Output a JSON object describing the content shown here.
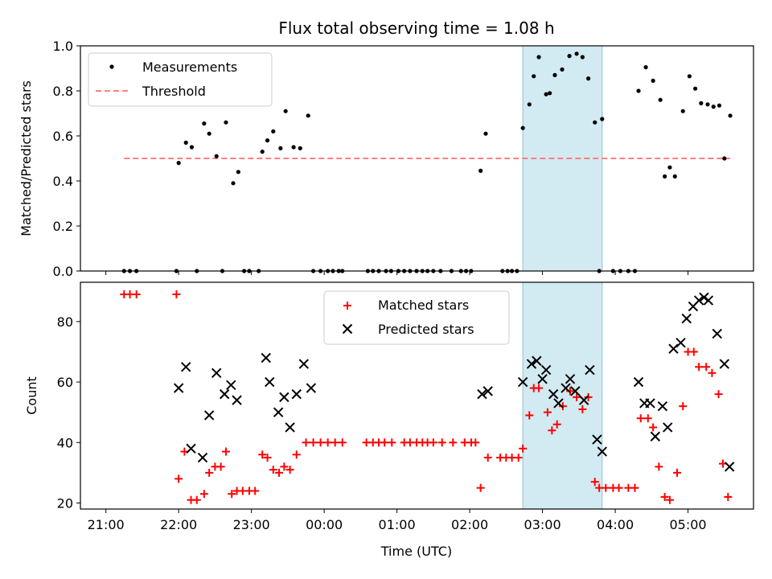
{
  "chart_data": [
    {
      "type": "scatter",
      "title": "Flux total observing time = 1.08 h",
      "ylabel": "Matched/Predicted stars",
      "xlabel": "",
      "xlim_hours": [
        20.65,
        29.9
      ],
      "ylim": [
        0,
        1.0
      ],
      "yticks": [
        0.0,
        0.2,
        0.4,
        0.6,
        0.8,
        1.0
      ],
      "ytick_labels": [
        "0.0",
        "0.2",
        "0.4",
        "0.6",
        "0.8",
        "1.0"
      ],
      "shaded_region_hours": [
        26.73,
        27.82
      ],
      "shaded_color": "#add8e6",
      "legend_position": "upper left",
      "series": [
        {
          "name": "Measurements",
          "marker": "dot",
          "color": "#000000",
          "x": [
            21.25,
            21.33,
            21.42,
            21.97,
            22.0,
            22.1,
            22.18,
            22.25,
            22.35,
            22.42,
            22.52,
            22.6,
            22.65,
            22.75,
            22.82,
            22.9,
            22.97,
            23.1,
            23.15,
            23.22,
            23.3,
            23.4,
            23.47,
            23.58,
            23.67,
            23.78,
            23.85,
            23.95,
            24.05,
            24.12,
            24.2,
            24.25,
            24.6,
            24.67,
            24.75,
            24.85,
            24.92,
            25.02,
            25.1,
            25.18,
            25.27,
            25.35,
            25.42,
            25.5,
            25.6,
            25.75,
            25.88,
            25.95,
            26.02,
            26.15,
            26.22,
            26.45,
            26.52,
            26.58,
            26.65,
            26.73,
            26.82,
            26.88,
            26.95,
            27.05,
            27.1,
            27.17,
            27.27,
            27.37,
            27.47,
            27.55,
            27.63,
            27.72,
            27.78,
            27.82,
            27.97,
            28.07,
            28.18,
            28.27,
            28.32,
            28.42,
            28.52,
            28.62,
            28.68,
            28.75,
            28.82,
            28.93,
            29.02,
            29.1,
            29.18,
            29.27,
            29.35,
            29.43,
            29.5,
            29.58
          ],
          "y": [
            0.0,
            0.0,
            0.0,
            0.0,
            0.48,
            0.57,
            0.55,
            0.0,
            0.655,
            0.61,
            0.51,
            0.0,
            0.66,
            0.39,
            0.44,
            0.0,
            0.0,
            0.0,
            0.53,
            0.58,
            0.62,
            0.545,
            0.71,
            0.55,
            0.545,
            0.69,
            0.0,
            0.0,
            0.0,
            0.0,
            0.0,
            0.0,
            0.0,
            0.0,
            0.0,
            0.0,
            0.0,
            0.0,
            0.0,
            0.0,
            0.0,
            0.0,
            0.0,
            0.0,
            0.0,
            0.0,
            0.0,
            0.0,
            0.0,
            0.445,
            0.61,
            0.0,
            0.0,
            0.0,
            0.0,
            0.635,
            0.74,
            0.865,
            0.95,
            0.785,
            0.79,
            0.87,
            0.895,
            0.955,
            0.965,
            0.95,
            0.855,
            0.66,
            0.0,
            0.675,
            0.0,
            0.0,
            0.0,
            0.0,
            0.8,
            0.905,
            0.845,
            0.76,
            0.42,
            0.46,
            0.42,
            0.71,
            0.865,
            0.81,
            0.745,
            0.74,
            0.73,
            0.735,
            0.5,
            0.69
          ]
        },
        {
          "name": "Threshold",
          "marker": "dashed-line",
          "color": "#ff7f7f",
          "x": [
            21.25,
            29.58
          ],
          "y": [
            0.5,
            0.5
          ]
        }
      ]
    },
    {
      "type": "scatter",
      "title": "",
      "ylabel": "Count",
      "xlabel": "Time (UTC)",
      "xlim_hours": [
        20.65,
        29.9
      ],
      "ylim": [
        18,
        93
      ],
      "yticks": [
        20,
        40,
        60,
        80
      ],
      "ytick_labels": [
        "20",
        "40",
        "60",
        "80"
      ],
      "xticks_hours": [
        21,
        22,
        23,
        24,
        25,
        26,
        27,
        28,
        29
      ],
      "xtick_labels": [
        "21:00",
        "22:00",
        "23:00",
        "00:00",
        "01:00",
        "02:00",
        "03:00",
        "04:00",
        "05:00"
      ],
      "shaded_region_hours": [
        26.73,
        27.82
      ],
      "shaded_color": "#add8e6",
      "legend_position": "upper center",
      "series": [
        {
          "name": "Matched stars",
          "marker": "plus",
          "color": "#ff0000",
          "x": [
            21.25,
            21.33,
            21.42,
            21.97,
            22.0,
            22.08,
            22.17,
            22.25,
            22.35,
            22.42,
            22.5,
            22.58,
            22.65,
            22.73,
            22.8,
            22.88,
            22.97,
            23.05,
            23.15,
            23.22,
            23.3,
            23.38,
            23.45,
            23.53,
            23.62,
            23.75,
            23.85,
            23.95,
            24.05,
            24.15,
            24.25,
            24.58,
            24.67,
            24.75,
            24.83,
            24.93,
            25.1,
            25.18,
            25.27,
            25.35,
            25.42,
            25.5,
            25.62,
            25.77,
            25.93,
            26.02,
            26.08,
            26.15,
            26.25,
            26.42,
            26.5,
            26.58,
            26.67,
            26.73,
            26.82,
            26.88,
            26.95,
            27.07,
            27.13,
            27.2,
            27.28,
            27.38,
            27.47,
            27.55,
            27.63,
            27.72,
            27.78,
            27.87,
            27.97,
            28.05,
            28.18,
            28.27,
            28.35,
            28.45,
            28.52,
            28.6,
            28.68,
            28.75,
            28.85,
            28.93,
            29.0,
            29.08,
            29.15,
            29.25,
            29.33,
            29.42,
            29.48,
            29.55
          ],
          "y": [
            89,
            89,
            89,
            89,
            28,
            37,
            21,
            21,
            23,
            30,
            32,
            32,
            37,
            23,
            24,
            24,
            24,
            24,
            36,
            35,
            31,
            30,
            32,
            31,
            36,
            40,
            40,
            40,
            40,
            40,
            40,
            40,
            40,
            40,
            40,
            40,
            40,
            40,
            40,
            40,
            40,
            40,
            40,
            40,
            40,
            40,
            40,
            25,
            35,
            35,
            35,
            35,
            35,
            38,
            49,
            58,
            58,
            50,
            44,
            46,
            52,
            57,
            55,
            51,
            55,
            27,
            25,
            25,
            25,
            25,
            25,
            25,
            48,
            48,
            45,
            32,
            22,
            21,
            30,
            52,
            70,
            70,
            65,
            65,
            63,
            56,
            33,
            22
          ]
        },
        {
          "name": "Predicted stars",
          "marker": "x",
          "color": "#000000",
          "x": [
            22.0,
            22.1,
            22.17,
            22.33,
            22.42,
            22.52,
            22.63,
            22.72,
            22.8,
            23.2,
            23.25,
            23.37,
            23.45,
            23.53,
            23.62,
            23.72,
            23.82,
            26.17,
            26.25,
            26.73,
            26.85,
            26.92,
            27.0,
            27.05,
            27.15,
            27.22,
            27.32,
            27.38,
            27.45,
            27.57,
            27.65,
            27.75,
            27.82,
            28.32,
            28.4,
            28.48,
            28.55,
            28.65,
            28.72,
            28.8,
            28.9,
            28.98,
            29.07,
            29.15,
            29.22,
            29.28,
            29.4,
            29.5,
            29.57
          ],
          "y": [
            58,
            65,
            38,
            35,
            49,
            63,
            56,
            59,
            54,
            68,
            60,
            50,
            55,
            45,
            56,
            66,
            58,
            56,
            57,
            60,
            66,
            67,
            61,
            64,
            56,
            53,
            58,
            61,
            57,
            54,
            64,
            41,
            37,
            60,
            53,
            53,
            42,
            52,
            45,
            71,
            73,
            81,
            85,
            87,
            88,
            87,
            76,
            66,
            32
          ]
        }
      ]
    }
  ]
}
